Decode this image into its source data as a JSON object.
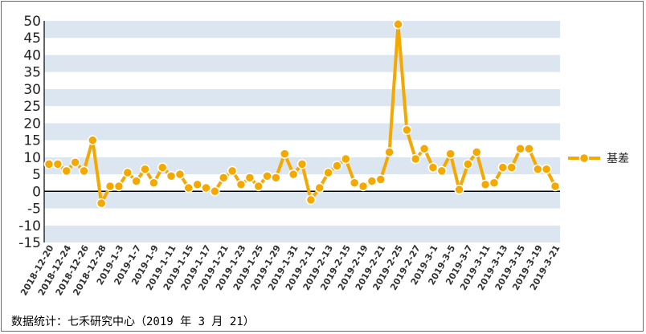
{
  "chart_data": {
    "type": "line",
    "title": "",
    "xlabel": "",
    "ylabel": "",
    "ylim": [
      -15,
      50
    ],
    "yticks": [
      50,
      45,
      40,
      35,
      30,
      25,
      20,
      15,
      10,
      5,
      0,
      -5,
      -10,
      -15
    ],
    "grid": "alternating horizontal bands",
    "legend_position": "right",
    "x": [
      "2018-12-20",
      "2018-12-21",
      "2018-12-24",
      "2018-12-25",
      "2018-12-26",
      "2018-12-27",
      "2018-12-28",
      "2019-1-2",
      "2019-1-3",
      "2019-1-4",
      "2019-1-7",
      "2019-1-8",
      "2019-1-9",
      "2019-1-10",
      "2019-1-11",
      "2019-1-14",
      "2019-1-15",
      "2019-1-16",
      "2019-1-17",
      "2019-1-18",
      "2019-1-21",
      "2019-1-22",
      "2019-1-23",
      "2019-1-24",
      "2019-1-25",
      "2019-1-28",
      "2019-1-29",
      "2019-1-30",
      "2019-1-31",
      "2019-2-1",
      "2019-2-11",
      "2019-2-12",
      "2019-2-13",
      "2019-2-14",
      "2019-2-15",
      "2019-2-18",
      "2019-2-19",
      "2019-2-20",
      "2019-2-21",
      "2019-2-22",
      "2019-2-25",
      "2019-2-26",
      "2019-2-27",
      "2019-2-28",
      "2019-3-1",
      "2019-3-4",
      "2019-3-5",
      "2019-3-6",
      "2019-3-7",
      "2019-3-8",
      "2019-3-11",
      "2019-3-12",
      "2019-3-13",
      "2019-3-14",
      "2019-3-15",
      "2019-3-18",
      "2019-3-19",
      "2019-3-20",
      "2019-3-21"
    ],
    "tick_labels": [
      "2018-12-20",
      "2018-12-24",
      "2018-12-26",
      "2018-12-28",
      "2019-1-3",
      "2019-1-7",
      "2019-1-9",
      "2019-1-11",
      "2019-1-15",
      "2019-1-17",
      "2019-1-21",
      "2019-1-23",
      "2019-1-25",
      "2019-1-29",
      "2019-1-31",
      "2019-2-11",
      "2019-2-13",
      "2019-2-15",
      "2019-2-19",
      "2019-2-21",
      "2019-2-25",
      "2019-2-27",
      "2019-3-1",
      "2019-3-5",
      "2019-3-7",
      "2019-3-11",
      "2019-3-13",
      "2019-3-15",
      "2019-3-19",
      "2019-3-21"
    ],
    "series": [
      {
        "name": "基差",
        "color": "#F5A800",
        "values": [
          8,
          8,
          6,
          8.5,
          6,
          15,
          -3.5,
          1.5,
          1.5,
          5.5,
          3,
          6.5,
          2.5,
          7,
          4.5,
          5,
          1,
          2,
          1,
          0,
          4,
          6,
          2,
          4,
          1.5,
          4.5,
          4,
          11,
          5,
          8,
          -2.5,
          1,
          5.5,
          7.5,
          9.5,
          2.5,
          1.5,
          3,
          3.5,
          11.5,
          49,
          18,
          9.5,
          12.5,
          7,
          6,
          11,
          0.5,
          8,
          11.5,
          2,
          2.5,
          7,
          7,
          12.5,
          12.5,
          6.5,
          6.5,
          1.5
        ]
      }
    ]
  },
  "source_note": "数据统计：七禾研究中心（2019 年 3 月 21）"
}
